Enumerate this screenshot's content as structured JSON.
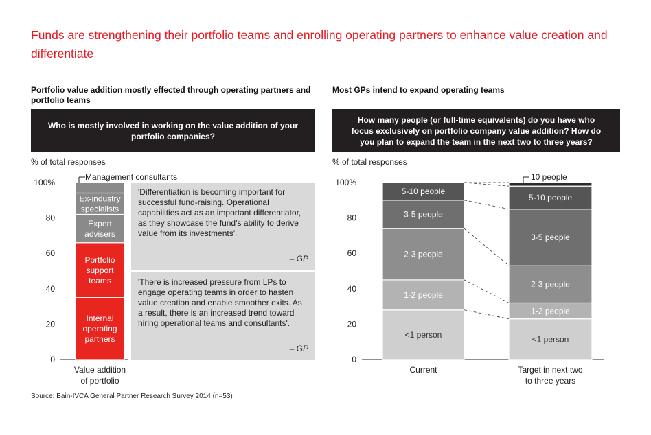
{
  "title": "Funds are strengthening their portfolio teams and enrolling operating partners to enhance value creation and differentiate",
  "source": "Source: Bain-IVCA General Partner Research Survey 2014 (n=53)",
  "left_panel": {
    "title": "Portfolio value addition mostly effected through operating partners and portfolio teams",
    "question": "Who is mostly involved in working on the value addition of your portfolio companies?",
    "unit": "% of total responses",
    "quotes": [
      {
        "text": "'Differentiation is becoming important for successful fund-raising. Operational capabilities act as an important differentiator, as they showcase the fund’s ability to derive value from its investments'.",
        "attribution": "– GP"
      },
      {
        "text": "'There is increased pressure from LPs to engage operating teams in order to hasten value creation and enable smoother exits. As a result, there is an increased trend toward hiring operational teams and consultants'.",
        "attribution": "– GP"
      }
    ]
  },
  "right_panel": {
    "title": "Most GPs intend to expand operating teams",
    "question": "How many people (or full-time equivalents) do you have who focus exclusively on portfolio company value addition? How do you plan to expand the team in the next two to three years?",
    "unit": "% of total responses"
  },
  "chart_data": [
    {
      "type": "bar",
      "stacked": true,
      "ylim": [
        0,
        100
      ],
      "yticks": [
        "0",
        "20",
        "40",
        "60",
        "80",
        "100%"
      ],
      "categories": [
        "Value addition of portfolio"
      ],
      "series": [
        {
          "name": "Internal operating partners",
          "values": [
            35
          ],
          "color": "#e8251f"
        },
        {
          "name": "Portfolio support teams",
          "values": [
            31
          ],
          "color": "#e8251f"
        },
        {
          "name": "Expert advisers",
          "values": [
            16
          ],
          "color": "#8a8a8a"
        },
        {
          "name": "Ex-industry specialists",
          "values": [
            12
          ],
          "color": "#8a8a8a"
        },
        {
          "name": "Management consultants",
          "values": [
            6
          ],
          "color": "#8a8a8a"
        }
      ]
    },
    {
      "type": "bar",
      "stacked": true,
      "ylim": [
        0,
        100
      ],
      "yticks": [
        "0",
        "20",
        "40",
        "60",
        "80",
        "100%"
      ],
      "categories": [
        "Current",
        "Target in next two to three years"
      ],
      "series": [
        {
          "name": "<1 person",
          "values": [
            28,
            23
          ],
          "color": "#cfcfcf"
        },
        {
          "name": "1-2 people",
          "values": [
            17,
            9
          ],
          "color": "#b3b3b3"
        },
        {
          "name": "2-3 people",
          "values": [
            29,
            21
          ],
          "color": "#8e8e8e"
        },
        {
          "name": "3-5 people",
          "values": [
            16,
            32
          ],
          "color": "#6f6f6f"
        },
        {
          "name": "5-10 people",
          "values": [
            10,
            13
          ],
          "color": "#555555"
        },
        {
          "name": "10 people",
          "values": [
            0,
            2
          ],
          "color": "#2b2b2b"
        }
      ]
    }
  ]
}
